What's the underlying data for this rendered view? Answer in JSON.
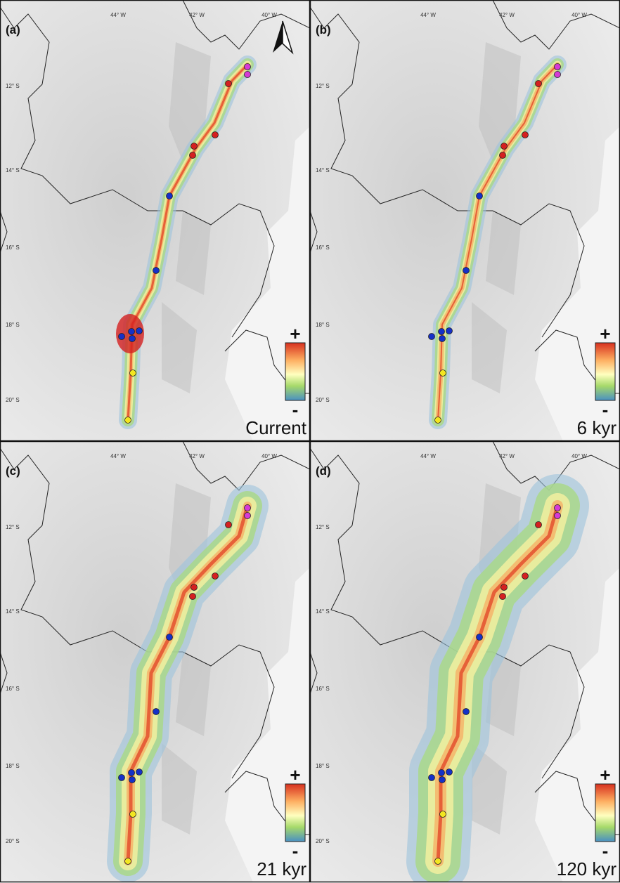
{
  "panels": [
    {
      "label": "(a)",
      "period": "Current"
    },
    {
      "label": "(b)",
      "period": "6 kyr"
    },
    {
      "label": "(c)",
      "period": "21 kyr"
    },
    {
      "label": "(d)",
      "period": "120 kyr"
    }
  ],
  "lon_labels": [
    "44° W",
    "42° W",
    "40° W"
  ],
  "lat_labels": [
    "12° S",
    "14° S",
    "16° S",
    "18° S",
    "20° S"
  ],
  "colorbar": {
    "high": "+",
    "low": "-"
  }
}
